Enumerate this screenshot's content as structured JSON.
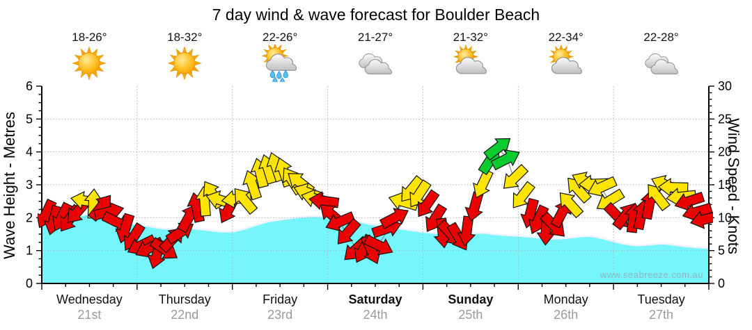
{
  "title": "7 day wind & wave forecast for Boulder Beach",
  "watermark": "www.seabreeze.com.au",
  "days": [
    {
      "name": "Wednesday",
      "date": "21st",
      "temp": "18-26°",
      "icon": "sunny",
      "bold": false
    },
    {
      "name": "Thursday",
      "date": "22nd",
      "temp": "18-32°",
      "icon": "sunny",
      "bold": false
    },
    {
      "name": "Friday",
      "date": "23rd",
      "temp": "22-26°",
      "icon": "sun-showers",
      "bold": false
    },
    {
      "name": "Saturday",
      "date": "24th",
      "temp": "21-27°",
      "icon": "cloudy",
      "bold": true
    },
    {
      "name": "Sunday",
      "date": "25th",
      "temp": "21-32°",
      "icon": "partly-cloudy",
      "bold": true
    },
    {
      "name": "Monday",
      "date": "26th",
      "temp": "22-34°",
      "icon": "partly-cloudy",
      "bold": false
    },
    {
      "name": "Tuesday",
      "date": "27th",
      "temp": "22-28°",
      "icon": "cloudy",
      "bold": false
    }
  ],
  "chart_data": {
    "type": "area+wind-arrows",
    "title": "7 day wind & wave forecast for Boulder Beach",
    "left_axis": {
      "label": "Wave Height - Metres",
      "min": 0,
      "max": 6,
      "major_tick": 1,
      "minor_tick": 0.25
    },
    "right_axis": {
      "label": "Wind Speed - Knots",
      "min": 0,
      "max": 30,
      "major_tick": 5,
      "minor_tick": 1
    },
    "x_axis": {
      "days": 7,
      "hours_total": 168,
      "minor_tick_hours": 6,
      "grid_at_day_boundaries": true
    },
    "wave_height_m": {
      "interval_hours": 3,
      "values": [
        1.78,
        1.85,
        1.95,
        2.05,
        2.1,
        2.02,
        1.92,
        1.85,
        1.8,
        1.74,
        1.68,
        1.65,
        1.68,
        1.66,
        1.62,
        1.58,
        1.58,
        1.66,
        1.78,
        1.88,
        1.94,
        1.99,
        2.03,
        2.05,
        2.02,
        1.97,
        1.92,
        1.85,
        1.78,
        1.72,
        1.67,
        1.62,
        1.57,
        1.53,
        1.5,
        1.49,
        1.52,
        1.54,
        1.5,
        1.47,
        1.45,
        1.42,
        1.38,
        1.36,
        1.38,
        1.42,
        1.44,
        1.38,
        1.28,
        1.2,
        1.16,
        1.18,
        1.21,
        1.18,
        1.13,
        1.1,
        1.08
      ]
    },
    "wind": {
      "sample_interval_hours": 2,
      "control_points_h_kn_dir": [
        [
          1,
          10.5,
          205
        ],
        [
          4,
          9.5,
          225
        ],
        [
          7,
          10,
          195
        ],
        [
          10,
          11.5,
          210
        ],
        [
          12,
          13,
          0
        ],
        [
          14,
          12,
          20
        ],
        [
          16,
          11,
          45
        ],
        [
          18,
          10.5,
          60
        ],
        [
          21,
          8,
          220
        ],
        [
          24,
          6.5,
          225
        ],
        [
          27,
          5,
          225
        ],
        [
          30,
          4.5,
          200
        ],
        [
          33,
          6.5,
          40
        ],
        [
          36,
          9,
          30
        ],
        [
          39,
          11.5,
          10
        ],
        [
          42,
          13.5,
          355
        ],
        [
          44,
          13,
          290
        ],
        [
          46,
          12.6,
          270
        ],
        [
          47.5,
          10.8,
          190
        ],
        [
          49,
          12.5,
          270
        ],
        [
          51,
          13,
          320
        ],
        [
          54,
          16,
          340
        ],
        [
          57,
          17.8,
          350
        ],
        [
          60,
          17.4,
          345
        ],
        [
          63,
          16,
          320
        ],
        [
          66,
          14.5,
          305
        ],
        [
          69,
          13,
          285
        ],
        [
          71,
          12.2,
          270
        ],
        [
          73,
          10.8,
          300
        ],
        [
          76,
          8.5,
          250
        ],
        [
          79,
          5.5,
          215
        ],
        [
          82,
          4.6,
          170
        ],
        [
          85,
          6,
          140
        ],
        [
          88,
          9,
          45
        ],
        [
          90,
          11.5,
          35
        ],
        [
          91.5,
          13,
          225
        ],
        [
          94,
          14.5,
          225
        ],
        [
          96,
          13.2,
          215
        ],
        [
          98,
          10.5,
          195
        ],
        [
          101,
          8,
          175
        ],
        [
          104,
          6.8,
          155
        ],
        [
          106.5,
          7.5,
          160
        ],
        [
          108,
          9.5,
          180
        ],
        [
          110,
          13,
          180
        ],
        [
          111.5,
          16.5,
          225
        ],
        [
          113,
          18.8,
          40
        ],
        [
          115,
          20.4,
          50
        ],
        [
          117,
          19.3,
          55
        ],
        [
          119,
          15.8,
          225
        ],
        [
          121,
          13.2,
          225
        ],
        [
          124,
          9.8,
          195
        ],
        [
          127,
          8.2,
          165
        ],
        [
          130,
          9.3,
          140
        ],
        [
          132,
          11.5,
          320
        ],
        [
          135,
          14.3,
          310
        ],
        [
          138,
          15.8,
          285
        ],
        [
          140,
          15.2,
          265
        ],
        [
          142,
          13.6,
          235
        ],
        [
          144,
          11.5,
          230
        ],
        [
          145.5,
          10,
          60
        ],
        [
          148,
          10,
          40
        ],
        [
          152,
          10.8,
          0
        ],
        [
          155,
          13.6,
          320
        ],
        [
          157,
          14.9,
          300
        ],
        [
          160,
          14.2,
          265
        ],
        [
          163,
          12.2,
          245
        ],
        [
          166,
          10.3,
          270
        ],
        [
          167,
          10,
          280
        ]
      ],
      "arrow_color_rule": {
        "red_below_kn": 12.25,
        "green_at_or_above_kn": 18.25
      }
    },
    "colors": {
      "wave_fill": "#76F6FB",
      "wave_edge": "#EFF3FF",
      "arrow_red": "#EA0000",
      "arrow_yellow": "#FFE400",
      "arrow_green": "#0ACC2E",
      "arrow_outline": "#141414",
      "wind_line": "#8a8a8a",
      "grid": "#a8b2b6",
      "axis": "#000000",
      "date_text": "#9a9a9a"
    }
  }
}
